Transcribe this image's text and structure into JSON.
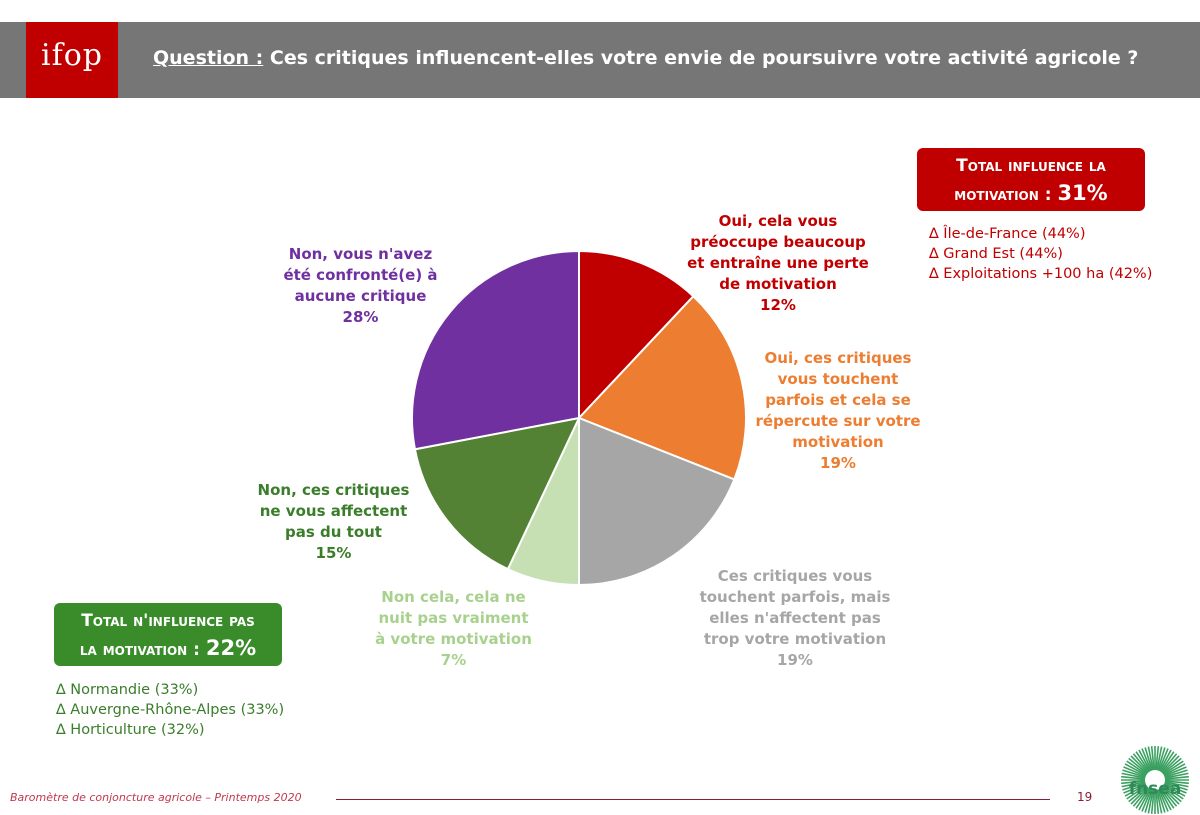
{
  "header": {
    "logo_text": "ifop",
    "question_label": "Question :",
    "question_text": "Ces critiques influencent-elles votre envie de poursuivre votre activité agricole ?"
  },
  "chart_data": {
    "type": "pie",
    "title": "Question : Ces critiques influencent-elles votre envie de poursuivre votre activité agricole ?",
    "slices": [
      {
        "label": "Oui, cela vous préoccupe beaucoup et entraîne une perte de motivation",
        "value": 12,
        "pct_label": "12%",
        "color": "#c00000"
      },
      {
        "label": "Oui, ces critiques vous touchent parfois et cela se répercute sur votre motivation",
        "value": 19,
        "pct_label": "19%",
        "color": "#ed7d31"
      },
      {
        "label": "Ces critiques vous touchent parfois, mais elles n'affectent pas trop votre motivation",
        "value": 19,
        "pct_label": "19%",
        "color": "#a6a6a6"
      },
      {
        "label": "Non cela, cela ne nuit pas vraiment à votre motivation",
        "value": 7,
        "pct_label": "7%",
        "color": "#c6e0b4"
      },
      {
        "label": "Non, ces critiques ne vous affectent pas du tout",
        "value": 15,
        "pct_label": "15%",
        "color": "#548235"
      },
      {
        "label": "Non, vous n'avez été confronté(e) à aucune critique",
        "value": 28,
        "pct_label": "28%",
        "color": "#7030a0"
      }
    ]
  },
  "labels": {
    "s1": {
      "line1": "Oui, cela vous",
      "line2": "préoccupe beaucoup",
      "line3": "et entraîne une perte",
      "line4": "de motivation",
      "pct": "12%"
    },
    "s2": {
      "line1": "Oui, ces critiques",
      "line2": "vous touchent",
      "line3": "parfois et cela se",
      "line4": "répercute sur votre",
      "line5": "motivation",
      "pct": "19%"
    },
    "s3": {
      "line1": "Ces critiques vous",
      "line2": "touchent parfois, mais",
      "line3": "elles n'affectent pas",
      "line4": "trop votre motivation",
      "pct": "19%"
    },
    "s4": {
      "line1": "Non cela, cela ne",
      "line2": "nuit pas vraiment",
      "line3": "à votre motivation",
      "pct": "7%"
    },
    "s5": {
      "line1": "Non, ces critiques",
      "line2": "ne vous affectent",
      "line3": "pas du tout",
      "pct": "15%"
    },
    "s6": {
      "line1": "Non, vous n'avez",
      "line2": "été confronté(e) à",
      "line3": "aucune critique",
      "pct": "28%"
    }
  },
  "total_influence": {
    "line1": "Total influence la",
    "line2": "motivation :",
    "pct": "31%",
    "deltas": [
      "∆ Île-de-France (44%)",
      "∆ Grand Est (44%)",
      "∆ Exploitations +100 ha (42%)"
    ]
  },
  "total_no_influence": {
    "line1": "Total n'influence pas",
    "line2": "la motivation :",
    "pct": "22%",
    "deltas": [
      "∆ Normandie (33%)",
      "∆ Auvergne-Rhône-Alpes (33%)",
      "∆ Horticulture (32%)"
    ]
  },
  "footer": {
    "text": "Baromètre de conjoncture agricole – Printemps 2020",
    "page": "19",
    "fnsea_logo_text": "fnsea"
  },
  "colors": {
    "header_bg": "#767676",
    "ifop_red": "#c00000",
    "total_green": "#3a8c2a"
  }
}
